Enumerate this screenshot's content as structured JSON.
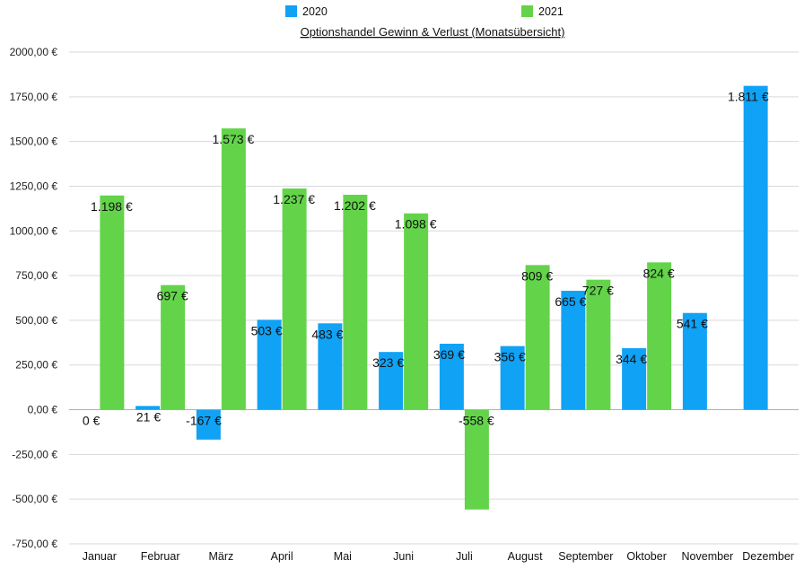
{
  "chart_data": {
    "type": "bar",
    "title": "Optionshandel Gewinn & Verlust (Monatsübersicht)",
    "categories": [
      "Januar",
      "Februar",
      "März",
      "April",
      "Mai",
      "Juni",
      "Juli",
      "August",
      "September",
      "Oktober",
      "November",
      "Dezember"
    ],
    "series": [
      {
        "name": "2020",
        "color": "#10A2F5",
        "values": [
          0,
          21,
          -167,
          503,
          483,
          323,
          369,
          356,
          665,
          344,
          541,
          1811
        ],
        "labels": [
          "0 €",
          "21 €",
          "-167 €",
          "503 €",
          "483 €",
          "323 €",
          "369 €",
          "356 €",
          "665 €",
          "344 €",
          "541 €",
          "1.811 €"
        ]
      },
      {
        "name": "2021",
        "color": "#63D44A",
        "values": [
          1198,
          697,
          1573,
          1237,
          1202,
          1098,
          -558,
          809,
          727,
          824,
          null,
          null
        ],
        "labels": [
          "1.198 €",
          "697 €",
          "1.573 €",
          "1.237 €",
          "1.202 €",
          "1.098 €",
          "-558 €",
          "809 €",
          "727 €",
          "824 €",
          "",
          ""
        ]
      }
    ],
    "ylim": [
      -750,
      2000
    ],
    "yticks": [
      2000,
      1750,
      1500,
      1250,
      1000,
      750,
      500,
      250,
      0,
      -250,
      -500,
      -750
    ],
    "ytick_labels": [
      "2000,00 €",
      "1750,00 €",
      "1500,00 €",
      "1250,00 €",
      "1000,00 €",
      "750,00 €",
      "500,00 €",
      "250,00 €",
      "0,00 €",
      "-250,00 €",
      "-500,00 €",
      "-750,00 €"
    ],
    "legend_position": "top-center",
    "grid": true
  }
}
